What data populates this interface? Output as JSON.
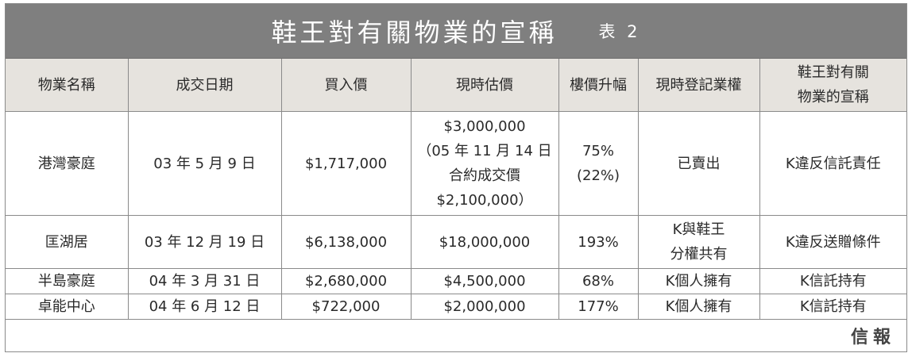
{
  "title": {
    "main": "鞋王對有關物業的宣稱",
    "sub": "表 2"
  },
  "columns": [
    {
      "lines": [
        "物業名稱"
      ]
    },
    {
      "lines": [
        "成交日期"
      ]
    },
    {
      "lines": [
        "買入價"
      ]
    },
    {
      "lines": [
        "現時估價"
      ]
    },
    {
      "lines": [
        "樓價升幅"
      ]
    },
    {
      "lines": [
        "現時登記業權"
      ]
    },
    {
      "lines": [
        "鞋王對有關",
        "物業的宣稱"
      ]
    }
  ],
  "rows": [
    {
      "cells": [
        {
          "lines": [
            "港灣豪庭"
          ]
        },
        {
          "lines": [
            "03 年 5 月 9 日"
          ]
        },
        {
          "lines": [
            "$1,717,000"
          ]
        },
        {
          "lines": [
            "$3,000,000",
            "（05 年 11 月 14 日",
            "合約成交價",
            "$2,100,000）"
          ]
        },
        {
          "lines": [
            "75%",
            "(22%)"
          ]
        },
        {
          "lines": [
            "已賣出"
          ]
        },
        {
          "lines": [
            "K違反信託責任"
          ]
        }
      ]
    },
    {
      "cells": [
        {
          "lines": [
            "匡湖居"
          ]
        },
        {
          "lines": [
            "03 年 12 月 19 日"
          ]
        },
        {
          "lines": [
            "$6,138,000"
          ]
        },
        {
          "lines": [
            "$18,000,000"
          ]
        },
        {
          "lines": [
            "193%"
          ]
        },
        {
          "lines": [
            "K與鞋王",
            "分權共有"
          ]
        },
        {
          "lines": [
            "K違反送贈條件"
          ]
        }
      ]
    },
    {
      "cells": [
        {
          "lines": [
            "半島豪庭"
          ]
        },
        {
          "lines": [
            "04 年 3 月 31 日"
          ]
        },
        {
          "lines": [
            "$2,680,000"
          ]
        },
        {
          "lines": [
            "$4,500,000"
          ]
        },
        {
          "lines": [
            "68%"
          ]
        },
        {
          "lines": [
            "K個人擁有"
          ]
        },
        {
          "lines": [
            "K信託持有"
          ]
        }
      ]
    },
    {
      "cells": [
        {
          "lines": [
            "卓能中心"
          ]
        },
        {
          "lines": [
            "04 年 6 月 12 日"
          ]
        },
        {
          "lines": [
            "$722,000"
          ]
        },
        {
          "lines": [
            "$2,000,000"
          ]
        },
        {
          "lines": [
            "177%"
          ]
        },
        {
          "lines": [
            "K個人擁有"
          ]
        },
        {
          "lines": [
            "K信託持有"
          ]
        }
      ]
    }
  ],
  "source": "信報"
}
